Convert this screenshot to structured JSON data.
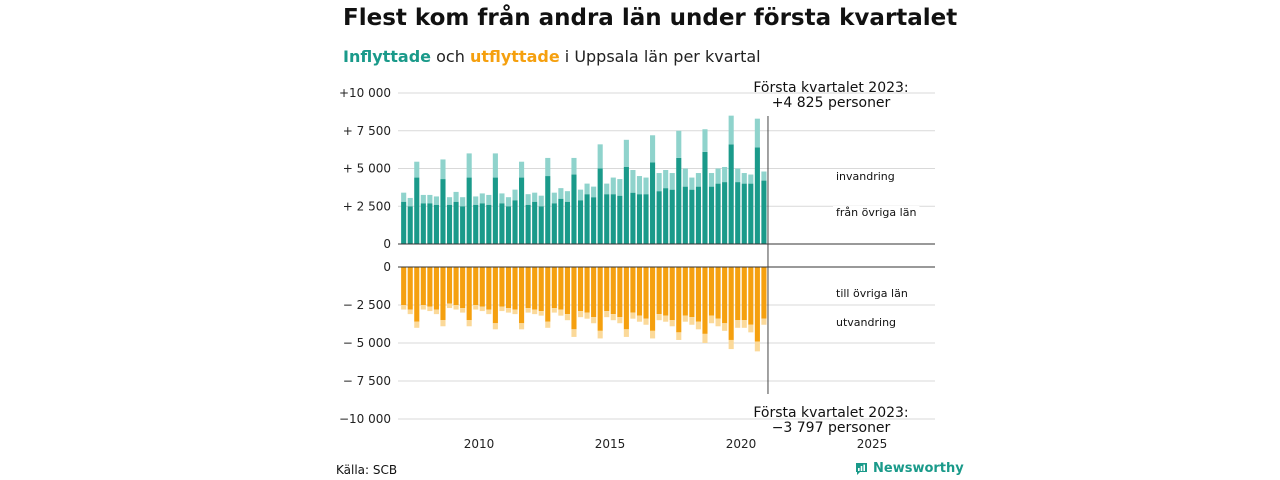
{
  "title": "Flest kom från andra län under första kvartalet",
  "subtitle": {
    "in_word": "Inflyttade",
    "and_word": "och",
    "out_word": "utflyttade",
    "rest": "i Uppsala län per kvartal"
  },
  "source": "Källa: SCB",
  "brand": "Newsworthy",
  "colors": {
    "inrikes_in": "#1a9a8a",
    "invandring": "#8fd3cc",
    "inrikes_out": "#f5a00f",
    "utvandring": "#fbd999",
    "grid": "#d9d9d9"
  },
  "chart_data": [
    {
      "type": "bar",
      "stacked": true,
      "panel": "top",
      "x_start_year": 2007,
      "quarters_per_year": 4,
      "ylim": [
        0,
        10000
      ],
      "yticks": [
        0,
        2500,
        5000,
        7500,
        10000
      ],
      "ytick_labels": [
        "0",
        "+ 2 500",
        "+ 5 000",
        "+ 7 500",
        "+10 000"
      ],
      "xticks": [
        2010,
        2015,
        2020,
        2025
      ],
      "xtick_labels": [
        "2010",
        "2015",
        "2020",
        "2025"
      ],
      "series": [
        {
          "name": "från övriga län",
          "color": "#1a9a8a",
          "values": [
            2800,
            2500,
            4400,
            2700,
            2700,
            2600,
            4300,
            2600,
            2800,
            2500,
            4400,
            2600,
            2700,
            2600,
            4400,
            2700,
            2500,
            2900,
            4400,
            2600,
            2800,
            2500,
            4500,
            2700,
            3000,
            2800,
            4600,
            2900,
            3300,
            3100,
            5000,
            3300,
            3300,
            3200,
            5100,
            3400,
            3300,
            3300,
            5400,
            3500,
            3700,
            3600,
            5700,
            3800,
            3600,
            3800,
            6100,
            3800,
            4000,
            4100,
            6600,
            4100,
            4000,
            4000,
            6400,
            4200
          ]
        },
        {
          "name": "invandring",
          "color": "#8fd3cc",
          "values": [
            600,
            550,
            1050,
            550,
            550,
            550,
            1300,
            500,
            650,
            600,
            1600,
            550,
            650,
            650,
            1600,
            650,
            600,
            700,
            1050,
            700,
            600,
            700,
            1200,
            700,
            700,
            700,
            1100,
            700,
            700,
            700,
            1600,
            700,
            1100,
            1100,
            1800,
            1500,
            1200,
            1100,
            1800,
            1200,
            1200,
            1100,
            1800,
            1200,
            800,
            900,
            1500,
            900,
            1000,
            1000,
            1900,
            900,
            700,
            600,
            1900,
            600
          ]
        }
      ],
      "annotation": {
        "line1": "Första kvartalet 2023:",
        "line2": "+4 825 personer"
      }
    },
    {
      "type": "bar",
      "stacked": true,
      "panel": "bottom",
      "x_start_year": 2007,
      "quarters_per_year": 4,
      "ylim": [
        -10000,
        0
      ],
      "yticks": [
        0,
        -2500,
        -5000,
        -7500,
        -10000
      ],
      "ytick_labels": [
        "0",
        "− 2 500",
        "− 5 000",
        "− 7 500",
        "−10 000"
      ],
      "series": [
        {
          "name": "till övriga län",
          "color": "#f5a00f",
          "values": [
            -2500,
            -2800,
            -3600,
            -2500,
            -2600,
            -2800,
            -3500,
            -2400,
            -2500,
            -2700,
            -3500,
            -2500,
            -2600,
            -2800,
            -3700,
            -2600,
            -2700,
            -2800,
            -3700,
            -2700,
            -2800,
            -2900,
            -3600,
            -2700,
            -2800,
            -3100,
            -4100,
            -2900,
            -3000,
            -3300,
            -4200,
            -2900,
            -3100,
            -3300,
            -4100,
            -3000,
            -3200,
            -3400,
            -4200,
            -3100,
            -3200,
            -3500,
            -4300,
            -3200,
            -3300,
            -3600,
            -4400,
            -3200,
            -3400,
            -3700,
            -4800,
            -3500,
            -3500,
            -3800,
            -4900,
            -3400
          ]
        },
        {
          "name": "utvandring",
          "color": "#fbd999",
          "values": [
            -300,
            -300,
            -400,
            -300,
            -300,
            -300,
            -400,
            -300,
            -300,
            -300,
            -400,
            -300,
            -300,
            -300,
            -400,
            -300,
            -300,
            -300,
            -400,
            -300,
            -300,
            -300,
            -400,
            -300,
            -400,
            -400,
            -500,
            -400,
            -400,
            -400,
            -500,
            -400,
            -400,
            -400,
            -500,
            -400,
            -400,
            -400,
            -500,
            -400,
            -400,
            -400,
            -500,
            -400,
            -500,
            -500,
            -600,
            -500,
            -500,
            -500,
            -600,
            -500,
            -500,
            -500,
            -650,
            -400
          ]
        }
      ],
      "annotation": {
        "line1": "Första kvartalet 2023:",
        "line2": "−3 797 personer"
      }
    }
  ]
}
